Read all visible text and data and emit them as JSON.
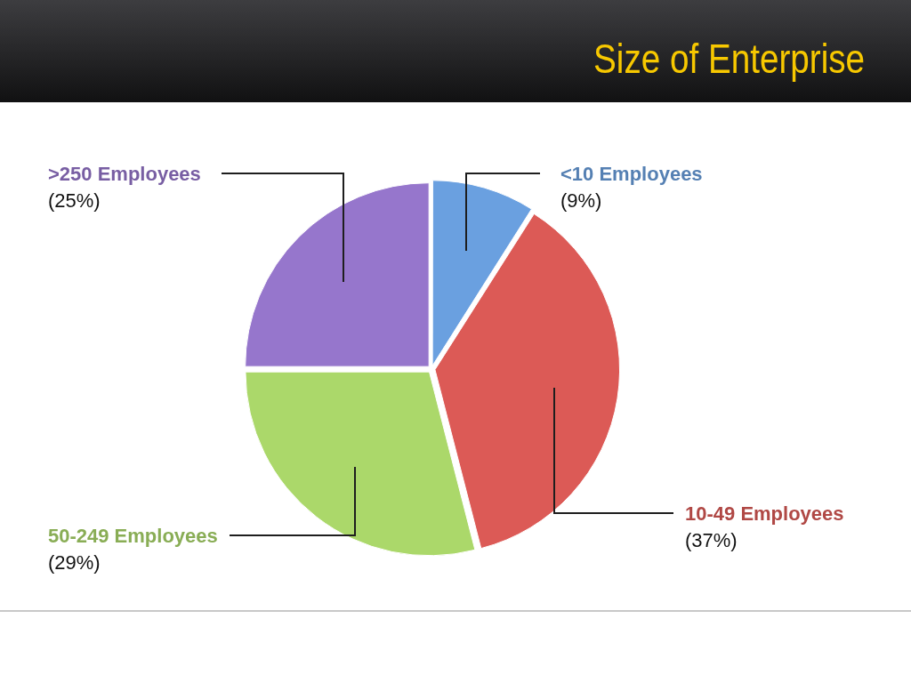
{
  "chart_data": {
    "type": "pie",
    "title": "Size of Enterprise",
    "categories": [
      "<10 Employees",
      "10-49 Employees",
      "50-249 Employees",
      ">250 Employees"
    ],
    "values": [
      9,
      37,
      29,
      25
    ],
    "value_labels": [
      "(9%)",
      "(37%)",
      "(29%)",
      "(25%)"
    ],
    "colors": [
      "#6aa0e0",
      "#dc5a56",
      "#abd86a",
      "#9676cc"
    ]
  }
}
